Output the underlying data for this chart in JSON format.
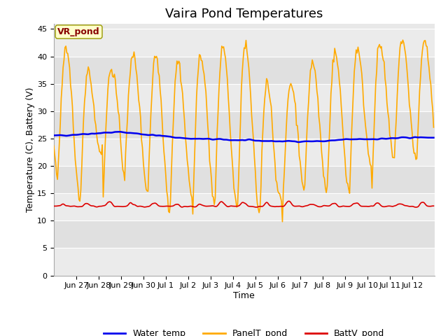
{
  "title": "Vaira Pond Temperatures",
  "xlabel": "Time",
  "ylabel": "Temperature (C), Battery (V)",
  "ylim": [
    0,
    46
  ],
  "yticks": [
    0,
    5,
    10,
    15,
    20,
    25,
    30,
    35,
    40,
    45
  ],
  "xtick_labels": [
    "Jun 27",
    "Jun 28",
    "Jun 29",
    "Jun 30",
    "Jul 1",
    "Jul 2",
    "Jul 3",
    "Jul 4",
    "Jul 5",
    "Jul 6",
    "Jul 7",
    "Jul 8",
    "Jul 9",
    "Jul 10",
    "Jul 11",
    "Jul 12"
  ],
  "water_temp_color": "#0000ee",
  "panel_temp_color": "#ffaa00",
  "batt_color": "#dd0000",
  "fig_facecolor": "#ffffff",
  "plot_facecolor": "#e8e8e8",
  "band_colors": [
    "#ebebeb",
    "#dddddd"
  ],
  "grid_color": "#ffffff",
  "annotation_text": "VR_pond",
  "annotation_bg": "#ffffcc",
  "annotation_fg": "#880000",
  "annotation_edge": "#999900",
  "legend_entries": [
    "Water_temp",
    "PanelT_pond",
    "BattV_pond"
  ],
  "water_lw": 1.8,
  "panel_lw": 1.2,
  "batt_lw": 1.2,
  "title_fontsize": 13,
  "axis_fontsize": 9,
  "tick_fontsize": 8,
  "legend_fontsize": 9,
  "annot_fontsize": 9
}
